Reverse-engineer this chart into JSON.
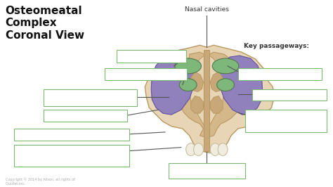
{
  "title": "Osteomeatal\nComplex\nCoronal View",
  "nasal_cavities_label": "Nasal cavities",
  "key_passageways_label": "Key passageways:",
  "bg_color": "#ffffff",
  "title_color": "#111111",
  "label_color": "#333333",
  "box_edge": "#7ab870",
  "anatomy_skin": "#e8d5b5",
  "anatomy_skin2": "#d4b88a",
  "anatomy_green": "#7db87a",
  "anatomy_purple": "#9080bb",
  "anatomy_cream": "#c8a878",
  "anatomy_outline": "#b89860",
  "teeth_color": "#f0ede0",
  "teeth_edge": "#c8c0a0",
  "line_color": "#555555"
}
